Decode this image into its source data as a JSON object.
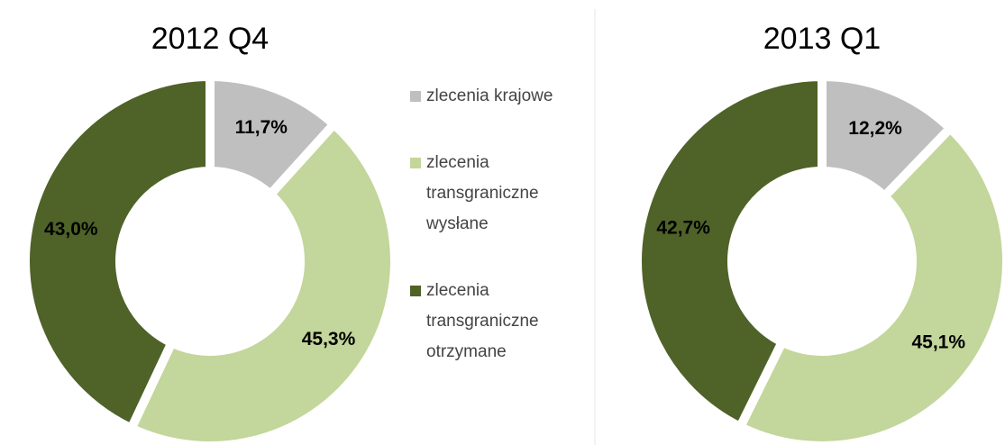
{
  "chart_data": [
    {
      "type": "pie",
      "title": "2012 Q4",
      "categories": [
        "zlecenia krajowe",
        "zlecenia transgraniczne wysłane",
        "zlecenia transgraniczne otrzymane"
      ],
      "colors": [
        "#bfbfbf",
        "#c3d69b",
        "#4f6228"
      ],
      "values": [
        11.7,
        45.3,
        43.0
      ],
      "value_labels": [
        "11,7%",
        "45,3%",
        "43,0%"
      ]
    },
    {
      "type": "pie",
      "title": "2013 Q1",
      "values": [
        12.2,
        45.1,
        42.7
      ],
      "value_labels": [
        "12,2%",
        "45,1%",
        "42,7%"
      ]
    }
  ]
}
